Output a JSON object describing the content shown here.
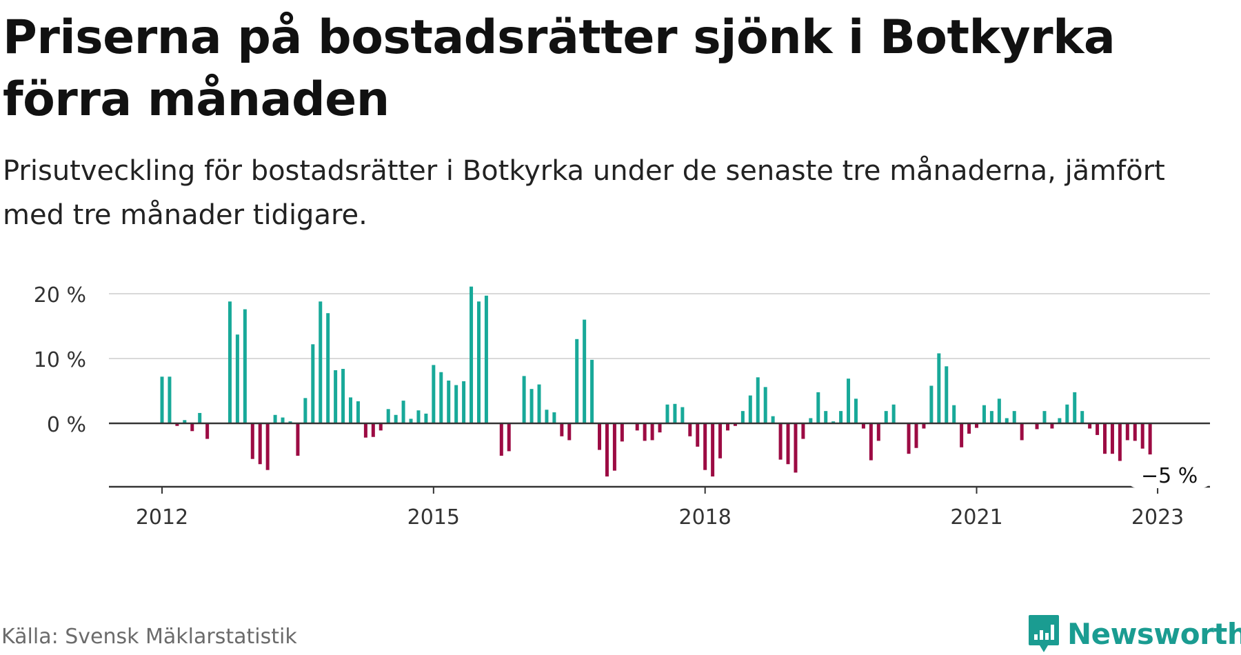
{
  "title": "Priserna på bostadsrätter sjönk i Botkyrka förra månaden",
  "subtitle": "Prisutveckling för bostadsrätter i Botkyrka under de senaste tre månaderna, jämfört med tre månader tidigare.",
  "source": "Källa: Svensk Mäklarstatistik",
  "brand": "Newsworthy",
  "colors": {
    "positive": "#18a999",
    "negative": "#9c0b43",
    "brand": "#1a9c91",
    "grid": "#d9d9d9",
    "axis": "#333333"
  },
  "chart_data": {
    "type": "bar",
    "start": "2012-01",
    "ylim": [
      -10,
      21
    ],
    "yticks": [
      0,
      10,
      20
    ],
    "ytick_labels": [
      "0 %",
      "10 %",
      "20 %"
    ],
    "xticks": [
      {
        "year": 2012,
        "label": "2012"
      },
      {
        "year": 2015,
        "label": "2015"
      },
      {
        "year": 2018,
        "label": "2018"
      },
      {
        "year": 2021,
        "label": "2021"
      },
      {
        "year": 2023,
        "label": "2023"
      }
    ],
    "grid": true,
    "last_value_label": "−5 %",
    "values": [
      7.2,
      7.2,
      -0.4,
      0.5,
      -1.2,
      1.6,
      -2.4,
      null,
      null,
      18.8,
      13.7,
      17.6,
      -5.5,
      -6.3,
      -7.2,
      1.3,
      0.9,
      0.3,
      -5.0,
      3.9,
      12.2,
      18.8,
      17.0,
      8.2,
      8.4,
      4.0,
      3.4,
      -2.2,
      -2.1,
      -1.1,
      2.2,
      1.3,
      3.5,
      0.7,
      2.0,
      1.5,
      9.0,
      7.9,
      6.6,
      5.9,
      6.5,
      21.1,
      18.8,
      19.7,
      null,
      -5.0,
      -4.3,
      null,
      7.3,
      5.3,
      6.0,
      2.1,
      1.7,
      -2.0,
      -2.6,
      13.0,
      16.0,
      9.8,
      -4.1,
      -8.2,
      -7.3,
      -2.8,
      null,
      -1.1,
      -2.7,
      -2.6,
      -1.4,
      2.9,
      3.0,
      2.5,
      -2.0,
      -3.6,
      -7.2,
      -8.2,
      -5.4,
      -1.1,
      -0.4,
      1.9,
      4.3,
      7.1,
      5.6,
      1.1,
      -5.6,
      -6.3,
      -7.6,
      -2.4,
      0.8,
      4.8,
      1.9,
      0.3,
      1.9,
      6.9,
      3.8,
      -0.8,
      -5.7,
      -2.7,
      1.9,
      2.9,
      null,
      -4.7,
      -3.8,
      -0.8,
      5.8,
      10.8,
      8.8,
      2.8,
      -3.7,
      -1.6,
      -0.7,
      2.8,
      1.9,
      3.8,
      0.8,
      1.9,
      -2.6,
      null,
      -0.9,
      1.9,
      -0.8,
      0.8,
      2.9,
      4.8,
      1.9,
      -0.8,
      -1.8,
      -4.7,
      -4.7,
      -5.8,
      -2.6,
      -2.7,
      -3.9,
      -4.8
    ]
  }
}
